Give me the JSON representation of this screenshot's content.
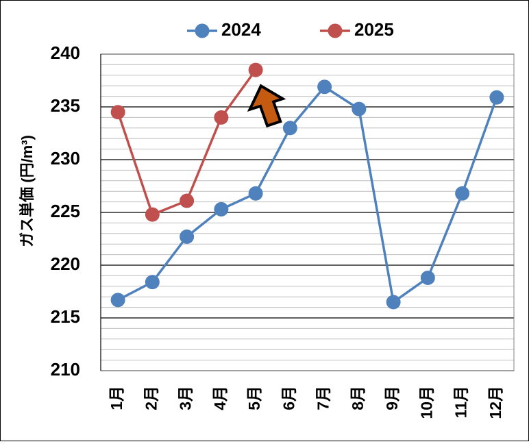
{
  "chart_data": {
    "type": "line",
    "title": "",
    "xlabel": "",
    "ylabel": "ガス単価 (円/m³)",
    "categories": [
      "1月",
      "2月",
      "3月",
      "4月",
      "5月",
      "6月",
      "7月",
      "8月",
      "9月",
      "10月",
      "11月",
      "12月"
    ],
    "ylim": [
      210,
      240
    ],
    "yticks": [
      210,
      215,
      220,
      225,
      230,
      235,
      240
    ],
    "grid": true,
    "legend_position": "top",
    "series": [
      {
        "name": "2024",
        "color": "#4f81bd",
        "values": [
          216.7,
          218.4,
          222.7,
          225.3,
          226.8,
          233.0,
          236.9,
          234.8,
          216.5,
          218.8,
          226.8,
          235.9
        ]
      },
      {
        "name": "2025",
        "color": "#c0504d",
        "values": [
          234.5,
          224.8,
          226.1,
          234.0,
          238.5,
          null,
          null,
          null,
          null,
          null,
          null,
          null
        ]
      }
    ],
    "annotations": [
      {
        "type": "up-arrow",
        "color": "#c55a11",
        "near": "5月 2025"
      }
    ]
  }
}
